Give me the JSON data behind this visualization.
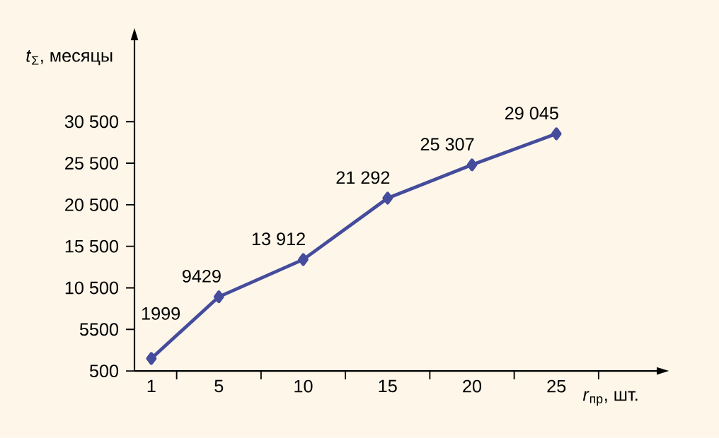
{
  "chart_data": {
    "type": "line",
    "xlabel": "*r*$_{пр}$, шт.",
    "ylabel": "*t*$_{Σ}$, месяцы",
    "x": [
      1,
      5,
      10,
      15,
      20,
      25
    ],
    "values": [
      1999,
      9429,
      13912,
      21292,
      25307,
      29045
    ],
    "value_labels": [
      "1999",
      "9429",
      "13 912",
      "21 292",
      "25 307",
      "29 045"
    ],
    "color": "#454c9c",
    "marker": "diamond",
    "grid": false,
    "xlim": [
      0,
      31
    ],
    "ylim": [
      500,
      40400
    ],
    "xticks": [
      {
        "value": 1,
        "label": "1"
      },
      {
        "value": 2.5,
        "label": null
      },
      {
        "value": 5,
        "label": "5"
      },
      {
        "value": 7.5,
        "label": null
      },
      {
        "value": 10,
        "label": "10"
      },
      {
        "value": 12.5,
        "label": null
      },
      {
        "value": 15,
        "label": "15"
      },
      {
        "value": 17.5,
        "label": null
      },
      {
        "value": 20,
        "label": "20"
      },
      {
        "value": 22.5,
        "label": null
      },
      {
        "value": 25,
        "label": "25"
      },
      {
        "value": 27.5,
        "label": null
      }
    ],
    "yticks": [
      500,
      5500,
      {
        "value": 10500,
        "label": "10 500"
      },
      {
        "value": 15500,
        "label": "15 500"
      },
      {
        "value": 20500,
        "label": "20 500"
      },
      {
        "value": 25500,
        "label": "25 500"
      },
      {
        "value": 30500,
        "label": "30 500"
      }
    ]
  }
}
